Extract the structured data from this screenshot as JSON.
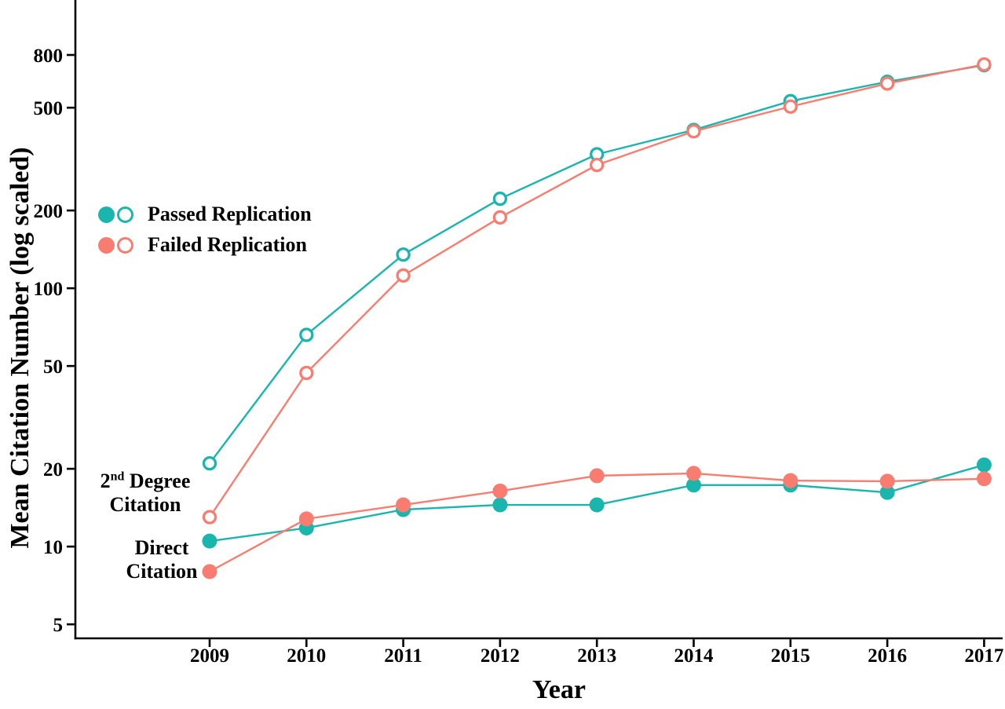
{
  "chart_data": {
    "type": "line",
    "title": "",
    "xlabel": "Year",
    "ylabel": "Mean Citation Number (log scaled)",
    "y_scale": "log10",
    "grid": false,
    "legend_position": "upper-left-inside",
    "axis_color": "#000000",
    "background_color": "#ffffff",
    "categories": [
      2009,
      2010,
      2011,
      2012,
      2013,
      2014,
      2015,
      2016,
      2017
    ],
    "y_ticks": [
      800,
      500,
      200,
      100,
      50,
      20,
      10,
      5
    ],
    "ylim": [
      4.5,
      1000
    ],
    "series": [
      {
        "name": "Passed Replication - 2nd Degree Citation",
        "group": "Passed Replication",
        "citation_type": "2nd Degree Citation",
        "color": "#1ab5ad",
        "marker": "open",
        "values": [
          21,
          66,
          135,
          222,
          330,
          410,
          530,
          630,
          730
        ]
      },
      {
        "name": "Passed Replication - Direct Citation",
        "group": "Passed Replication",
        "citation_type": "Direct Citation",
        "color": "#1ab5ad",
        "marker": "filled",
        "values": [
          10.5,
          11.8,
          13.9,
          14.5,
          14.5,
          17.3,
          17.3,
          16.2,
          20.7
        ]
      },
      {
        "name": "Failed Replication - 2nd Degree Citation",
        "group": "Failed Replication",
        "citation_type": "2nd Degree Citation",
        "color": "#f87d70",
        "marker": "open",
        "values": [
          13,
          47,
          112,
          188,
          300,
          405,
          505,
          620,
          735
        ]
      },
      {
        "name": "Failed Replication - Direct Citation",
        "group": "Failed Replication",
        "citation_type": "Direct Citation",
        "color": "#f87d70",
        "marker": "filled",
        "values": [
          8,
          12.8,
          14.5,
          16.4,
          18.8,
          19.2,
          18,
          17.9,
          18.3
        ]
      }
    ],
    "legend": [
      {
        "label": "Passed Replication",
        "color": "#1ab5ad"
      },
      {
        "label": "Failed Replication",
        "color": "#f87d70"
      }
    ],
    "annotations": {
      "second_degree": {
        "base": "2",
        "sup": "nd",
        "word": "Degree",
        "line2": "Citation"
      },
      "direct": {
        "line1": "Direct",
        "line2": "Citation"
      }
    }
  }
}
